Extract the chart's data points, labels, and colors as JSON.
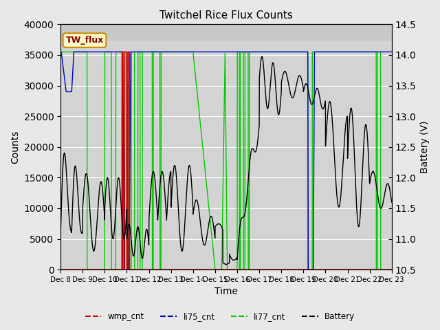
{
  "title": "Twitchel Rice Flux Counts",
  "ylabel_left": "Counts",
  "ylabel_right": "Battery (V)",
  "xlabel": "Time",
  "ylim_left": [
    0,
    40000
  ],
  "ylim_right": [
    10.5,
    14.5
  ],
  "fig_bg_color": "#e8e8e8",
  "plot_bg_color": "#d3d3d3",
  "plot_bg_upper": "#c8c8c8",
  "x_tick_labels": [
    "Dec 8",
    "Dec 9",
    "Dec 10",
    "Dec 11",
    "Dec 12",
    "Dec 13",
    "Dec 14",
    "Dec 15",
    "Dec 16",
    "Dec 17",
    "Dec 18",
    "Dec 19",
    "Dec 20",
    "Dec 21",
    "Dec 22",
    "Dec 23"
  ],
  "annotation_text": "TW_flux",
  "annotation_box_color": "#ffffcc",
  "annotation_box_edge": "#cc8800",
  "wmp_color": "#cc0000",
  "li75_color": "#0000cc",
  "li77_color": "#00cc00",
  "battery_color": "#000000"
}
